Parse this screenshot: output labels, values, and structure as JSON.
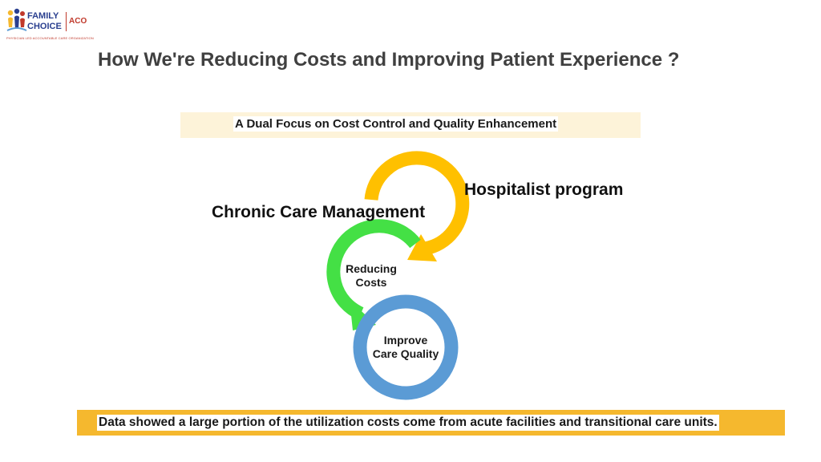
{
  "logo": {
    "line1": "FAMILY",
    "line2": "CHOICE",
    "suffix": "ACO",
    "tagline": "PHYSICIAN LED ACCOUNTABLE CARE ORGANIZATION",
    "colors": {
      "primary": "#2a3f8f",
      "accent": "#c0392b"
    }
  },
  "title": "How We're Reducing Costs and Improving Patient Experience ?",
  "subtitle": "A Dual Focus on Cost Control and Quality Enhancement",
  "diagram": {
    "outer_labels": {
      "hospitalist": "Hospitalist program",
      "chronic_care": "Chronic Care Management"
    },
    "rings": [
      {
        "label": "",
        "color": "#ffc000"
      },
      {
        "label_lines": [
          "Reducing",
          "Costs"
        ],
        "color": "#44e045"
      },
      {
        "label_lines": [
          "Improve",
          "Care Quality"
        ],
        "color": "#5b9bd5"
      }
    ]
  },
  "footer": "Data showed a large portion of the utilization costs come from acute facilities and transitional care units.",
  "colors": {
    "banner_bg": "#fdf3d9",
    "footer_bg": "#f5b82e"
  }
}
